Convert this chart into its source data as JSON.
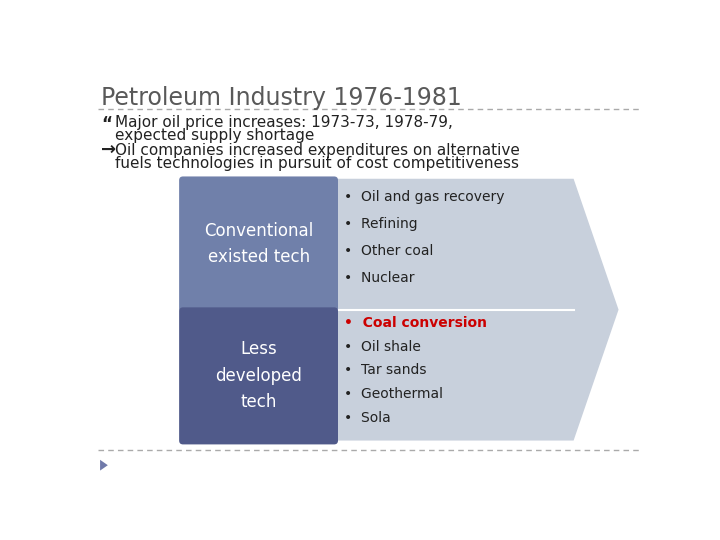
{
  "title": "Petroleum Industry 1976-1981",
  "title_color": "#595959",
  "title_fontsize": 17,
  "bullet1_symbol": "“",
  "bullet2_symbol": "→",
  "body_fontsize": 11,
  "body_color": "#222222",
  "box1_label": "Conventional\nexisted tech",
  "box2_label": "Less\ndeveloped\ntech",
  "box_text_color": "#ffffff",
  "box1_color": "#7080aa",
  "box2_color": "#505a8a",
  "arrow_color": "#c8d0dc",
  "list1": [
    "Oil and gas recovery",
    "Refining",
    "Other coal",
    "Nuclear"
  ],
  "list2_items": [
    "Coal conversion",
    "Oil shale",
    "Tar sands",
    "Geothermal",
    "Sola"
  ],
  "list2_bold_index": 0,
  "list2_bold_color": "#cc0000",
  "list_fontsize": 10,
  "bg_color": "#ffffff",
  "divider_color": "#aaaaaa",
  "bottom_triangle_color": "#707aaa"
}
